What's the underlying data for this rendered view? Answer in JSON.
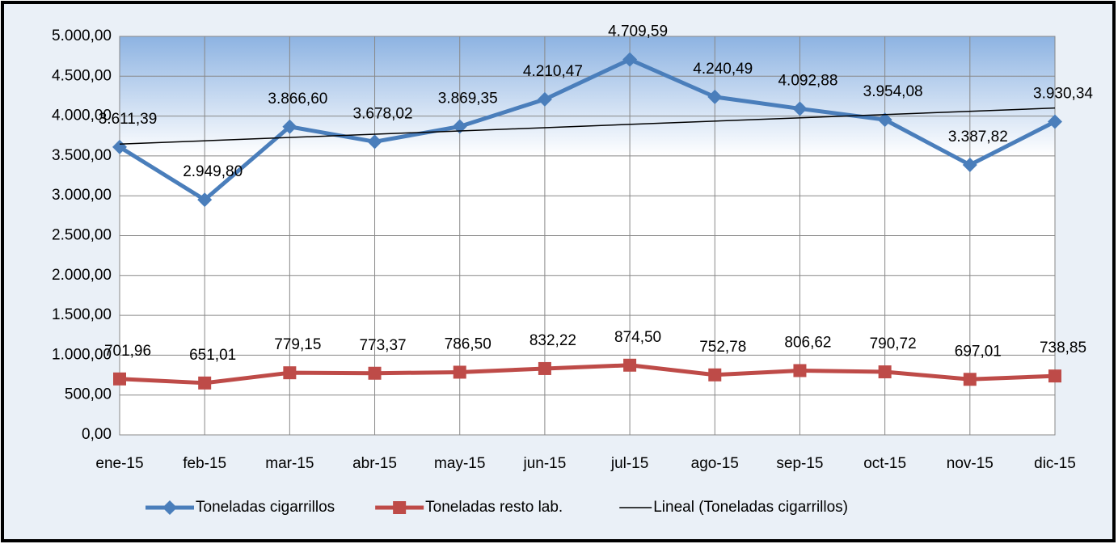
{
  "chart_data": {
    "type": "line",
    "categories": [
      "ene-15",
      "feb-15",
      "mar-15",
      "abr-15",
      "may-15",
      "jun-15",
      "jul-15",
      "ago-15",
      "sep-15",
      "oct-15",
      "nov-15",
      "dic-15"
    ],
    "series": [
      {
        "name": "Toneladas cigarrillos",
        "color": "#4a7ebb",
        "marker": "diamond",
        "values": [
          3611.39,
          2949.8,
          3866.6,
          3678.02,
          3869.35,
          4210.47,
          4709.59,
          4240.49,
          4092.88,
          3954.08,
          3387.82,
          3930.34
        ],
        "value_labels": [
          "3.611,39",
          "2.949,80",
          "3.866,60",
          "3.678,02",
          "3.869,35",
          "4.210,47",
          "4.709,59",
          "4.240,49",
          "4.092,88",
          "3.954,08",
          "3.387,82",
          "3.930,34"
        ]
      },
      {
        "name": "Toneladas resto lab.",
        "color": "#be4b48",
        "marker": "square",
        "values": [
          701.96,
          651.01,
          779.15,
          773.37,
          786.5,
          832.22,
          874.5,
          752.78,
          806.62,
          790.72,
          697.01,
          738.85
        ],
        "value_labels": [
          "701,96",
          "651,01",
          "779,15",
          "773,37",
          "786,50",
          "832,22",
          "874,50",
          "752,78",
          "806,62",
          "790,72",
          "697,01",
          "738,85"
        ]
      },
      {
        "name": "Lineal (Toneladas cigarrillos)",
        "color": "#000000",
        "type": "linear_trend",
        "of_series": 0
      }
    ],
    "ylim": [
      0,
      5000
    ],
    "yticks": [
      {
        "value": 0,
        "label": "0,00"
      },
      {
        "value": 500,
        "label": "500,00"
      },
      {
        "value": 1000,
        "label": "1.000,00"
      },
      {
        "value": 1500,
        "label": "1.500,00"
      },
      {
        "value": 2000,
        "label": "2.000,00"
      },
      {
        "value": 2500,
        "label": "2.500,00"
      },
      {
        "value": 3000,
        "label": "3.000,00"
      },
      {
        "value": 3500,
        "label": "3.500,00"
      },
      {
        "value": 4000,
        "label": "4.000,00"
      },
      {
        "value": 4500,
        "label": "4.500,00"
      },
      {
        "value": 5000,
        "label": "5.000,00"
      }
    ],
    "grid": true,
    "legend": "bottom"
  }
}
